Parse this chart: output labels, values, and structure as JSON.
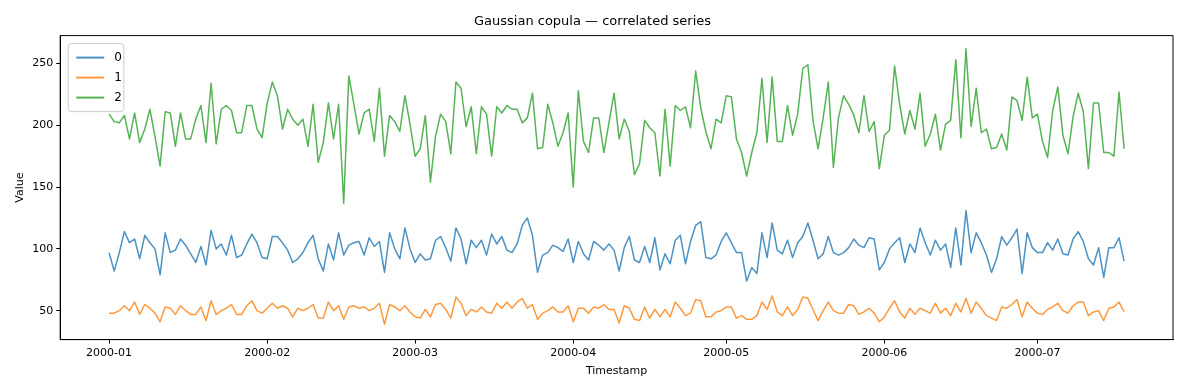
{
  "chart_data": {
    "type": "line",
    "title": "Gaussian copula — correlated series",
    "xlabel": "Timestamp",
    "ylabel": "Value",
    "x": [
      "2000-01-01",
      "2000-01-02",
      "2000-01-03",
      "2000-01-04",
      "2000-01-05",
      "2000-01-06",
      "2000-01-07",
      "2000-01-08",
      "2000-01-09",
      "2000-01-10",
      "2000-01-11",
      "2000-01-12",
      "2000-01-13",
      "2000-01-14",
      "2000-01-15",
      "2000-01-16",
      "2000-01-17",
      "2000-01-18",
      "2000-01-19",
      "2000-01-20",
      "2000-01-21",
      "2000-01-22",
      "2000-01-23",
      "2000-01-24",
      "2000-01-25",
      "2000-01-26",
      "2000-01-27",
      "2000-01-28",
      "2000-01-29",
      "2000-01-30",
      "2000-01-31",
      "2000-02-01",
      "2000-02-02",
      "2000-02-03",
      "2000-02-04",
      "2000-02-05",
      "2000-02-06",
      "2000-02-07",
      "2000-02-08",
      "2000-02-09",
      "2000-02-10",
      "2000-02-11",
      "2000-02-12",
      "2000-02-13",
      "2000-02-14",
      "2000-02-15",
      "2000-02-16",
      "2000-02-17",
      "2000-02-18",
      "2000-02-19",
      "2000-02-20",
      "2000-02-21",
      "2000-02-22",
      "2000-02-23",
      "2000-02-24",
      "2000-02-25",
      "2000-02-26",
      "2000-02-27",
      "2000-02-28",
      "2000-02-29",
      "2000-03-01",
      "2000-03-02",
      "2000-03-03",
      "2000-03-04",
      "2000-03-05",
      "2000-03-06",
      "2000-03-07",
      "2000-03-08",
      "2000-03-09",
      "2000-03-10",
      "2000-03-11",
      "2000-03-12",
      "2000-03-13",
      "2000-03-14",
      "2000-03-15",
      "2000-03-16",
      "2000-03-17",
      "2000-03-18",
      "2000-03-19",
      "2000-03-20",
      "2000-03-21",
      "2000-03-22",
      "2000-03-23",
      "2000-03-24",
      "2000-03-25",
      "2000-03-26",
      "2000-03-27",
      "2000-03-28",
      "2000-03-29",
      "2000-03-30",
      "2000-03-31",
      "2000-04-01",
      "2000-04-02",
      "2000-04-03",
      "2000-04-04",
      "2000-04-05",
      "2000-04-06",
      "2000-04-07",
      "2000-04-08",
      "2000-04-09",
      "2000-04-10",
      "2000-04-11",
      "2000-04-12",
      "2000-04-13",
      "2000-04-14",
      "2000-04-15",
      "2000-04-16",
      "2000-04-17",
      "2000-04-18",
      "2000-04-19",
      "2000-04-20",
      "2000-04-21",
      "2000-04-22",
      "2000-04-23",
      "2000-04-24",
      "2000-04-25",
      "2000-04-26",
      "2000-04-27",
      "2000-04-28",
      "2000-04-29",
      "2000-04-30",
      "2000-05-01",
      "2000-05-02",
      "2000-05-03",
      "2000-05-04",
      "2000-05-05",
      "2000-05-06",
      "2000-05-07",
      "2000-05-08",
      "2000-05-09",
      "2000-05-10",
      "2000-05-11",
      "2000-05-12",
      "2000-05-13",
      "2000-05-14",
      "2000-05-15",
      "2000-05-16",
      "2000-05-17",
      "2000-05-18",
      "2000-05-19",
      "2000-05-20",
      "2000-05-21",
      "2000-05-22",
      "2000-05-23",
      "2000-05-24",
      "2000-05-25",
      "2000-05-26",
      "2000-05-27",
      "2000-05-28",
      "2000-05-29",
      "2000-05-30",
      "2000-05-31",
      "2000-06-01",
      "2000-06-02",
      "2000-06-03",
      "2000-06-04",
      "2000-06-05",
      "2000-06-06",
      "2000-06-07",
      "2000-06-08",
      "2000-06-09",
      "2000-06-10",
      "2000-06-11",
      "2000-06-12",
      "2000-06-13",
      "2000-06-14",
      "2000-06-15",
      "2000-06-16",
      "2000-06-17",
      "2000-06-18",
      "2000-06-19",
      "2000-06-20",
      "2000-06-21",
      "2000-06-22",
      "2000-06-23",
      "2000-06-24",
      "2000-06-25",
      "2000-06-26",
      "2000-06-27",
      "2000-06-28",
      "2000-06-29",
      "2000-06-30",
      "2000-07-01",
      "2000-07-02",
      "2000-07-03",
      "2000-07-04",
      "2000-07-05",
      "2000-07-06",
      "2000-07-07",
      "2000-07-08",
      "2000-07-09",
      "2000-07-10",
      "2000-07-11",
      "2000-07-12",
      "2000-07-13",
      "2000-07-14",
      "2000-07-15",
      "2000-07-16",
      "2000-07-17",
      "2000-07-18"
    ],
    "series": [
      {
        "name": "0",
        "color": "#4c92c3",
        "values": [
          97,
          82,
          97,
          114,
          105,
          108,
          92,
          111,
          105,
          100,
          79,
          113,
          97,
          99,
          108,
          103,
          96,
          89,
          102,
          87,
          115,
          100,
          104,
          95,
          111,
          93,
          95,
          104,
          112,
          105,
          93,
          92,
          110,
          110,
          105,
          99,
          89,
          92,
          97,
          105,
          111,
          92,
          82,
          104,
          91,
          113,
          95,
          103,
          105,
          106,
          95,
          109,
          102,
          106,
          81,
          113,
          100,
          92,
          117,
          100,
          89,
          96,
          91,
          92,
          107,
          110,
          101,
          90,
          117,
          108,
          88,
          107,
          101,
          107,
          95,
          112,
          104,
          110,
          99,
          97,
          104,
          119,
          125,
          111,
          81,
          95,
          97,
          103,
          101,
          98,
          108,
          89,
          106,
          96,
          91,
          106,
          103,
          99,
          104,
          99,
          82,
          101,
          110,
          91,
          89,
          102,
          89,
          109,
          83,
          96,
          88,
          107,
          111,
          88,
          106,
          119,
          122,
          93,
          92,
          95,
          106,
          113,
          105,
          97,
          97,
          74,
          85,
          80,
          113,
          93,
          121,
          99,
          96,
          107,
          93,
          105,
          110,
          121,
          107,
          92,
          96,
          110,
          97,
          95,
          97,
          101,
          108,
          103,
          101,
          109,
          108,
          83,
          89,
          100,
          105,
          109,
          89,
          104,
          97,
          117,
          105,
          95,
          107,
          99,
          104,
          85,
          117,
          87,
          131,
          97,
          113,
          105,
          95,
          81,
          92,
          110,
          103,
          109,
          116,
          80,
          113,
          101,
          97,
          97,
          105,
          99,
          108,
          96,
          95,
          108,
          114,
          106,
          92,
          87,
          101,
          77,
          101,
          101,
          109,
          90
        ]
      },
      {
        "name": "1",
        "color": "#ff993e",
        "values": [
          48,
          48,
          50,
          54,
          50,
          57,
          47,
          55,
          52,
          48,
          41,
          53,
          52,
          47,
          54,
          50,
          47,
          47,
          53,
          42,
          58,
          47,
          50,
          52,
          55,
          47,
          47,
          54,
          58,
          50,
          48,
          52,
          56,
          52,
          54,
          52,
          45,
          52,
          50,
          52,
          55,
          44,
          44,
          57,
          50,
          54,
          43,
          53,
          54,
          52,
          53,
          50,
          52,
          56,
          39,
          55,
          53,
          50,
          54,
          49,
          45,
          44,
          51,
          45,
          55,
          56,
          51,
          44,
          61,
          56,
          46,
          51,
          49,
          53,
          49,
          48,
          56,
          52,
          57,
          52,
          57,
          60,
          52,
          55,
          43,
          48,
          50,
          53,
          49,
          49,
          54,
          41,
          52,
          52,
          48,
          53,
          52,
          55,
          51,
          51,
          40,
          54,
          52,
          43,
          42,
          53,
          44,
          51,
          45,
          51,
          45,
          57,
          52,
          46,
          48,
          59,
          58,
          45,
          45,
          49,
          50,
          53,
          53,
          44,
          46,
          43,
          43,
          46,
          57,
          51,
          62,
          49,
          46,
          53,
          46,
          51,
          61,
          60,
          51,
          42,
          50,
          57,
          50,
          48,
          48,
          55,
          54,
          47,
          49,
          52,
          48,
          41,
          45,
          52,
          58,
          49,
          44,
          52,
          47,
          52,
          50,
          48,
          56,
          48,
          52,
          46,
          56,
          49,
          60,
          48,
          57,
          52,
          46,
          44,
          42,
          53,
          52,
          55,
          59,
          45,
          57,
          52,
          48,
          47,
          51,
          53,
          56,
          50,
          48,
          54,
          57,
          57,
          46,
          49,
          50,
          42,
          52,
          53,
          57,
          49
        ]
      },
      {
        "name": "2",
        "color": "#56b356",
        "values": [
          209,
          203,
          202,
          208,
          189,
          210,
          186,
          197,
          213,
          191,
          167,
          211,
          210,
          183,
          210,
          189,
          189,
          205,
          216,
          186,
          234,
          185,
          213,
          216,
          212,
          194,
          194,
          216,
          216,
          197,
          190,
          218,
          235,
          224,
          197,
          213,
          205,
          200,
          205,
          183,
          217,
          170,
          186,
          218,
          189,
          217,
          137,
          240,
          217,
          193,
          210,
          213,
          187,
          230,
          175,
          208,
          203,
          195,
          224,
          201,
          175,
          181,
          208,
          154,
          191,
          209,
          203,
          177,
          235,
          230,
          199,
          215,
          177,
          215,
          209,
          175,
          215,
          210,
          216,
          213,
          213,
          202,
          206,
          226,
          181,
          182,
          217,
          202,
          183,
          194,
          210,
          150,
          228,
          187,
          178,
          206,
          206,
          178,
          202,
          226,
          189,
          205,
          195,
          160,
          169,
          204,
          198,
          194,
          159,
          213,
          167,
          216,
          212,
          215,
          198,
          244,
          214,
          195,
          181,
          205,
          202,
          224,
          223,
          189,
          178,
          159,
          178,
          194,
          238,
          186,
          239,
          187,
          187,
          216,
          192,
          209,
          246,
          249,
          204,
          181,
          206,
          235,
          166,
          206,
          224,
          217,
          208,
          194,
          224,
          195,
          203,
          165,
          192,
          196,
          248,
          217,
          193,
          212,
          197,
          226,
          183,
          193,
          209,
          180,
          201,
          204,
          253,
          190,
          262,
          199,
          230,
          194,
          197,
          181,
          182,
          193,
          180,
          223,
          220,
          204,
          239,
          206,
          209,
          187,
          174,
          212,
          231,
          192,
          177,
          207,
          226,
          211,
          165,
          218,
          218,
          178,
          178,
          175,
          227,
          181
        ]
      }
    ],
    "xlim": [
      "1999-12-22T10:00",
      "2000-07-27T14:00"
    ],
    "xticks": [
      {
        "value": "2000-01-01",
        "label": "2000-01"
      },
      {
        "value": "2000-02-01",
        "label": "2000-02"
      },
      {
        "value": "2000-03-01",
        "label": "2000-03"
      },
      {
        "value": "2000-04-01",
        "label": "2000-04"
      },
      {
        "value": "2000-05-01",
        "label": "2000-05"
      },
      {
        "value": "2000-06-01",
        "label": "2000-06"
      },
      {
        "value": "2000-07-01",
        "label": "2000-07"
      }
    ],
    "ylim": [
      26.6,
      272.6
    ],
    "yticks": [
      50,
      100,
      150,
      200,
      250
    ],
    "legend": "top left"
  }
}
